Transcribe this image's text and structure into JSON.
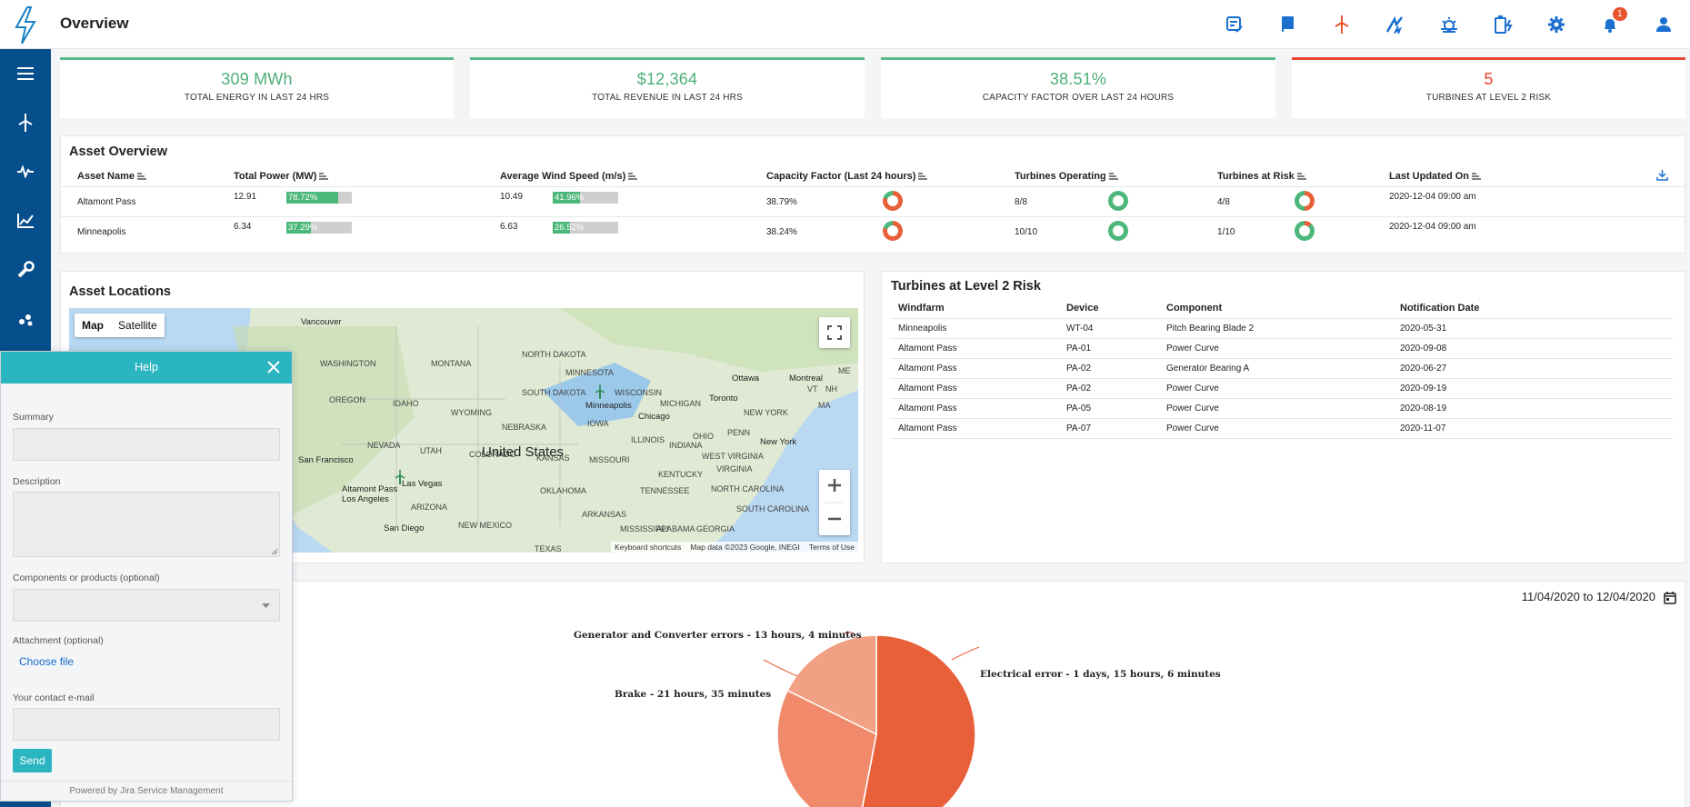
{
  "header": {
    "title": "Overview",
    "notification_count": "1",
    "icons": [
      "report-icon",
      "book-icon",
      "wind-turbine-icon",
      "power-flash-icon",
      "weather-icon",
      "battery-icon",
      "gear-icon",
      "bell-icon",
      "user-icon"
    ]
  },
  "sidebar": {
    "items": [
      "menu-icon",
      "turbine-icon",
      "pulse-icon",
      "line-chart-icon",
      "wrench-icon",
      "scatter-icon"
    ]
  },
  "kpis": [
    {
      "value": "309 MWh",
      "label": "TOTAL ENERGY IN LAST 24 HRS",
      "color": "#4caf78"
    },
    {
      "value": "$12,364",
      "label": "TOTAL REVENUE IN LAST 24 HRS",
      "color": "#4caf78"
    },
    {
      "value": "38.51%",
      "label": "CAPACITY FACTOR OVER LAST 24 HOURS",
      "color": "#4caf78"
    },
    {
      "value": "5",
      "label": "TURBINES AT LEVEL 2 RISK",
      "color": "#e8452f"
    }
  ],
  "asset_overview": {
    "title": "Asset Overview",
    "columns": [
      "Asset Name",
      "Total Power (MW)",
      "Average Wind Speed (m/s)",
      "Capacity Factor (Last 24 hours)",
      "Turbines Operating",
      "Turbines at Risk",
      "Last Updated On"
    ],
    "rows": [
      {
        "name": "Altamont Pass",
        "power": "12.91",
        "power_pct": "78.72%",
        "power_frac": 0.7872,
        "wind": "10.49",
        "wind_pct": "41.96%",
        "wind_frac": 0.4196,
        "capacity": "38.79%",
        "operating": "8/8",
        "risk": "4/8",
        "updated": "2020-12-04 09:00 am"
      },
      {
        "name": "Minneapolis",
        "power": "6.34",
        "power_pct": "37.29%",
        "power_frac": 0.3729,
        "wind": "6.63",
        "wind_pct": "26.52%",
        "wind_frac": 0.2652,
        "capacity": "38.24%",
        "operating": "10/10",
        "risk": "1/10",
        "updated": "2020-12-04 09:00 am"
      }
    ]
  },
  "asset_locations": {
    "title": "Asset Locations",
    "map_tabs": [
      "Map",
      "Satellite"
    ],
    "labels": [
      "Vancouver",
      "WASHINGTON",
      "MONTANA",
      "NORTH DAKOTA",
      "MINNESOTA",
      "OREGON",
      "IDAHO",
      "WYOMING",
      "SOUTH DAKOTA",
      "WISCONSIN",
      "MICHIGAN",
      "Minneapolis",
      "Ottawa",
      "Montreal",
      "Toronto",
      "NEW YORK",
      "IOWA",
      "Chicago",
      "NEBRASKA",
      "NEVADA",
      "UTAH",
      "COLORADO",
      "KANSAS",
      "MISSOURI",
      "ILLINOIS",
      "INDIANA",
      "OHIO",
      "PENN",
      "New York",
      "WEST VIRGINIA",
      "KENTUCKY",
      "VIRGINIA",
      "San Francisco",
      "Altamont Pass",
      "Las Vegas",
      "Los Angeles",
      "ARIZONA",
      "OKLAHOMA",
      "TENNESSEE",
      "NORTH CAROLINA",
      "San Diego",
      "NEW MEXICO",
      "ARKANSAS",
      "MISSISSIPPI",
      "ALABAMA",
      "GEORGIA",
      "SOUTH CAROLINA",
      "TEXAS",
      "VT",
      "NH",
      "MA",
      "ME"
    ],
    "country": "United States",
    "footer": [
      "Keyboard shortcuts",
      "Map data ©2023 Google, INEGI",
      "Terms of Use"
    ]
  },
  "risk_turbines": {
    "title": "Turbines at Level 2 Risk",
    "columns": [
      "Windfarm",
      "Device",
      "Component",
      "Notification Date"
    ],
    "rows": [
      [
        "Minneapolis",
        "WT-04",
        "Pitch Bearing Blade 2",
        "2020-05-31"
      ],
      [
        "Altamont Pass",
        "PA-01",
        "Power Curve",
        "2020-09-08"
      ],
      [
        "Altamont Pass",
        "PA-02",
        "Generator Bearing A",
        "2020-06-27"
      ],
      [
        "Altamont Pass",
        "PA-02",
        "Power Curve",
        "2020-09-19"
      ],
      [
        "Altamont Pass",
        "PA-05",
        "Power Curve",
        "2020-08-19"
      ],
      [
        "Altamont Pass",
        "PA-07",
        "Power Curve",
        "2020-11-07"
      ]
    ]
  },
  "downtime": {
    "date_range": "11/04/2020 to 12/04/2020"
  },
  "chart_data": {
    "type": "pie",
    "slices": [
      {
        "label": "Electrical error - 1 days, 15 hours, 6 minutes",
        "value": 2346,
        "color": "#e8603a"
      },
      {
        "label": "Brake - 21 hours, 35 minutes",
        "value": 1295,
        "color": "#f08a6a"
      },
      {
        "label": "Generator and Converter errors - 13 hours, 4 minutes",
        "value": 784,
        "color": "#f2a084"
      }
    ],
    "visible_only": "partial"
  },
  "help": {
    "title": "Help",
    "summary_label": "Summary",
    "description_label": "Description",
    "components_label": "Components or products (optional)",
    "attachment_label": "Attachment (optional)",
    "choose_file": "Choose file",
    "email_label": "Your contact e-mail",
    "send": "Send",
    "footer": "Powered by Jira Service Management"
  }
}
